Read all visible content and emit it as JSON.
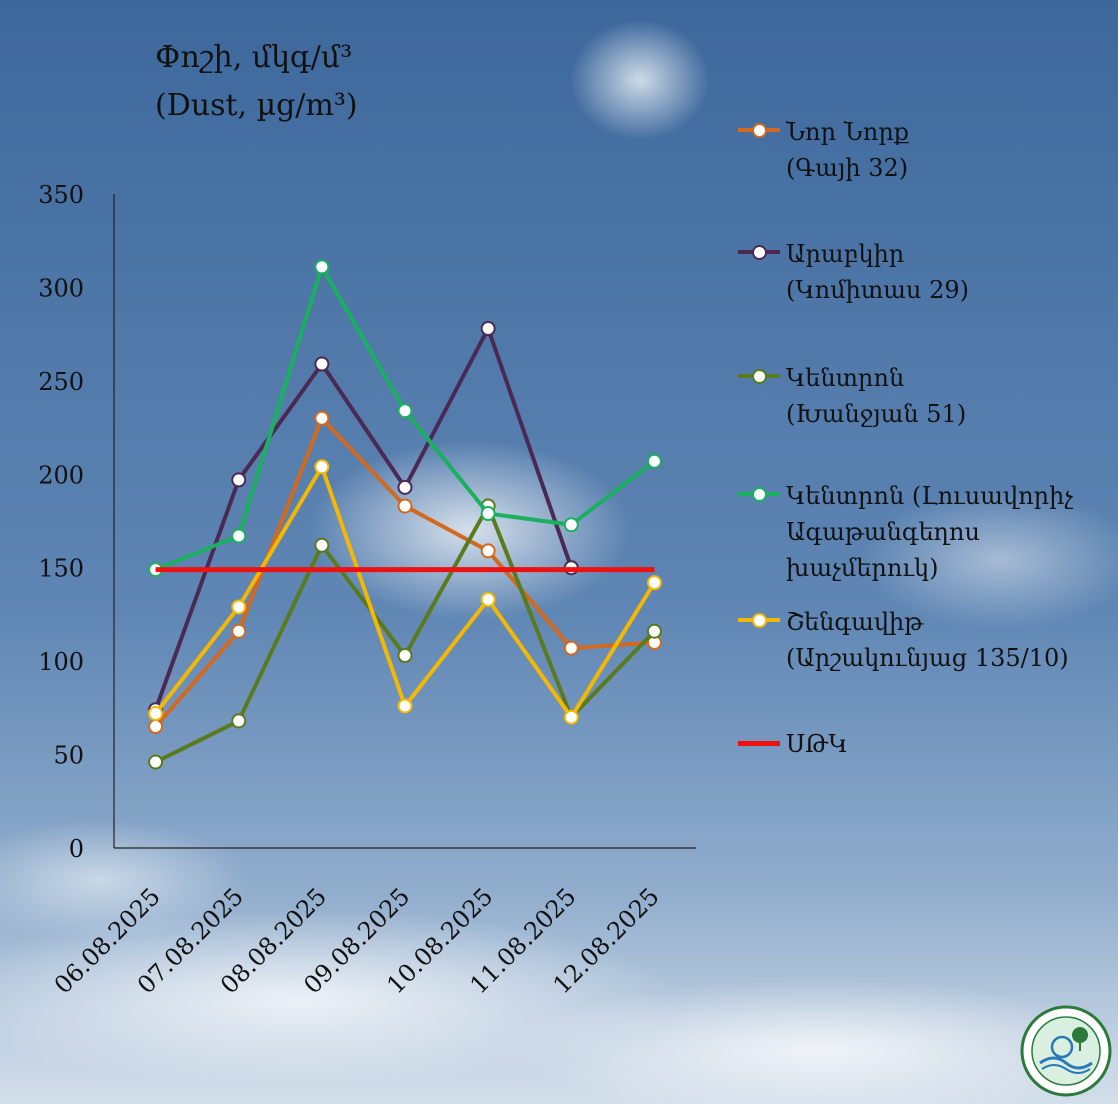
{
  "chart_data": {
    "type": "line",
    "title_line1": "Փոշի, մկգ/մ³",
    "title_line2": "(Dust, µg/m³)",
    "categories": [
      "06.08.2025",
      "07.08.2025",
      "08.08.2025",
      "09.08.2025",
      "10.08.2025",
      "11.08.2025",
      "12.08.2025"
    ],
    "ylim": [
      0,
      350
    ],
    "yticks": [
      0,
      50,
      100,
      150,
      200,
      250,
      300,
      350
    ],
    "series": [
      {
        "name": "Նոր Նորք\n(Գայի 32)",
        "color": "#d2691e",
        "values": [
          65,
          116,
          230,
          183,
          159,
          107,
          110
        ]
      },
      {
        "name": "Արաբկիր\n(Կոմիտաս 29)",
        "color": "#4a2a55",
        "values": [
          74,
          197,
          259,
          193,
          278,
          150,
          null
        ]
      },
      {
        "name": "Կենտրոն\n(Խանջյան 51)",
        "color": "#5a7a1e",
        "values": [
          46,
          68,
          162,
          103,
          183,
          70,
          116
        ]
      },
      {
        "name": "Կենտրոն (Լուսավորիչ\nԱգաթանգեղոս\nխաչմերուկ)",
        "color": "#1ab060",
        "values": [
          149,
          167,
          311,
          234,
          179,
          173,
          207
        ]
      },
      {
        "name": "Շենգավիթ\n(Արշակունյաց 135/10)",
        "color": "#f4b800",
        "values": [
          72,
          129,
          204,
          76,
          133,
          70,
          142
        ]
      },
      {
        "name": "ՍԹԿ",
        "color": "#ee1111",
        "values": [
          149,
          149,
          149,
          149,
          149,
          149,
          149
        ],
        "nomarkers": true
      }
    ]
  },
  "colors": {
    "sky_top": "#3f6a9e",
    "sky_bottom": "#c4d4e6"
  },
  "logo_icon": "ministry-seal-icon"
}
